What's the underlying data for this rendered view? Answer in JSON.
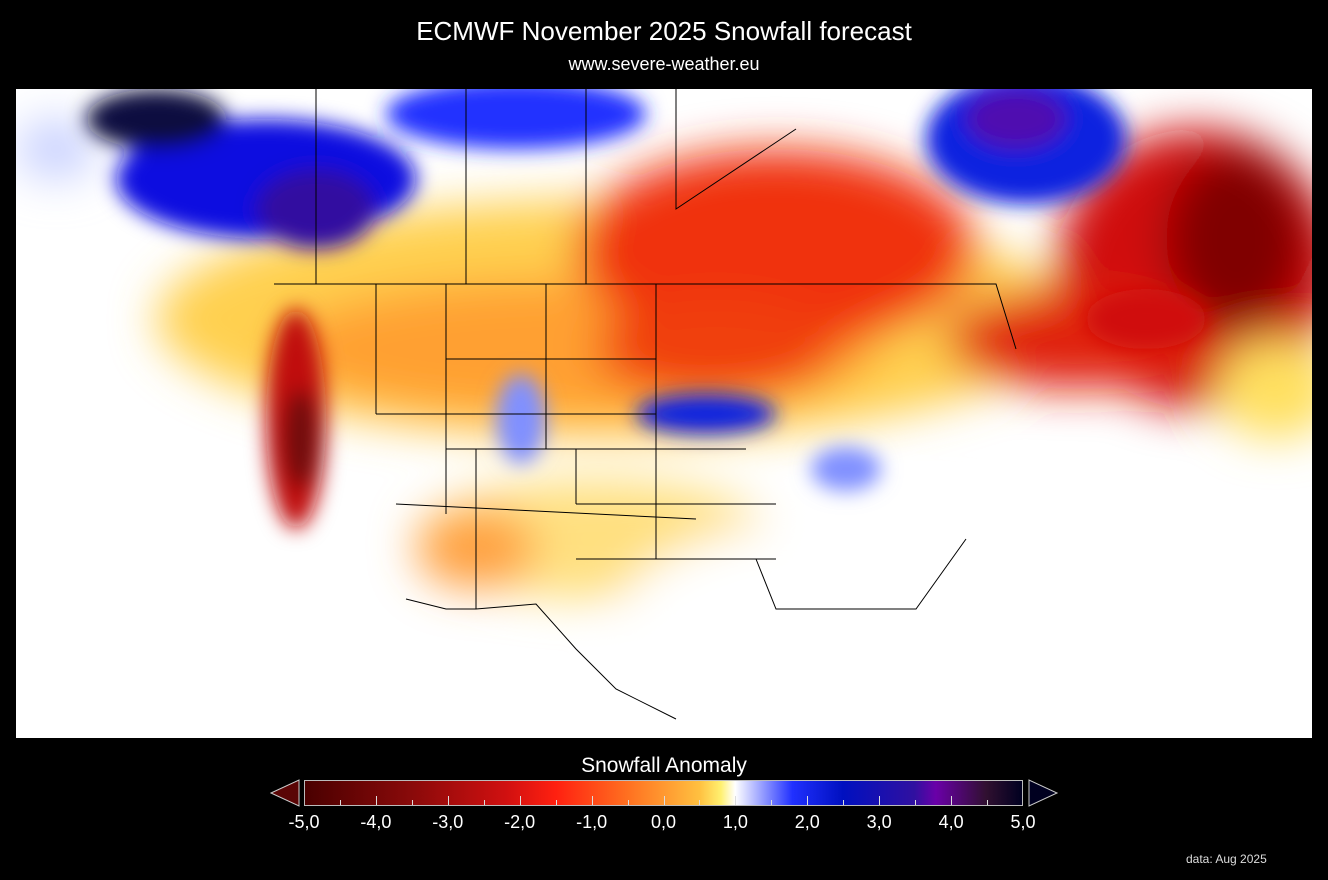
{
  "title": "ECMWF November 2025 Snowfall forecast",
  "subtitle": "www.severe-weather.eu",
  "legend": {
    "title": "Snowfall Anomaly",
    "min": -5.0,
    "max": 5.0,
    "tick_labels": [
      "-5,0",
      "-4,0",
      "-3,0",
      "-2,0",
      "-1,0",
      "0,0",
      "1,0",
      "2,0",
      "3,0",
      "4,0",
      "5,0"
    ],
    "colors": {
      "negative": "#8a0a0a",
      "neutral": "#ffffff",
      "positive": "#0010c0",
      "extreme_positive": "#6a00a8"
    },
    "extend": "both"
  },
  "footer": "data: Aug 2025"
}
